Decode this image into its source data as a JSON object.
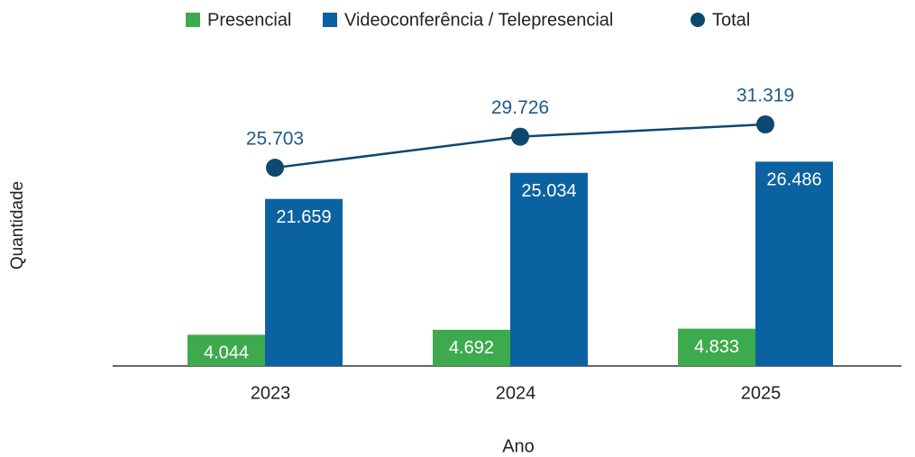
{
  "chart_data": {
    "type": "bar",
    "x_label": "Ano",
    "y_label": "Quantidade",
    "categories": [
      "2023",
      "2024",
      "2025"
    ],
    "series": [
      {
        "name": "Presencial",
        "color": "#3daa4e",
        "values": [
          4044,
          4692,
          4833
        ],
        "value_labels": [
          "4.044",
          "4.692",
          "4.833"
        ]
      },
      {
        "name": "Videoconferência / Telepresencial",
        "color": "#0b62a0",
        "values": [
          21659,
          25034,
          26486
        ],
        "value_labels": [
          "21.659",
          "25.034",
          "26.486"
        ]
      },
      {
        "name": "Total",
        "type": "line",
        "color": "#0d4870",
        "values": [
          25703,
          29726,
          31319
        ],
        "value_labels": [
          "25.703",
          "29.726",
          "31.319"
        ]
      }
    ],
    "legend": "top"
  }
}
